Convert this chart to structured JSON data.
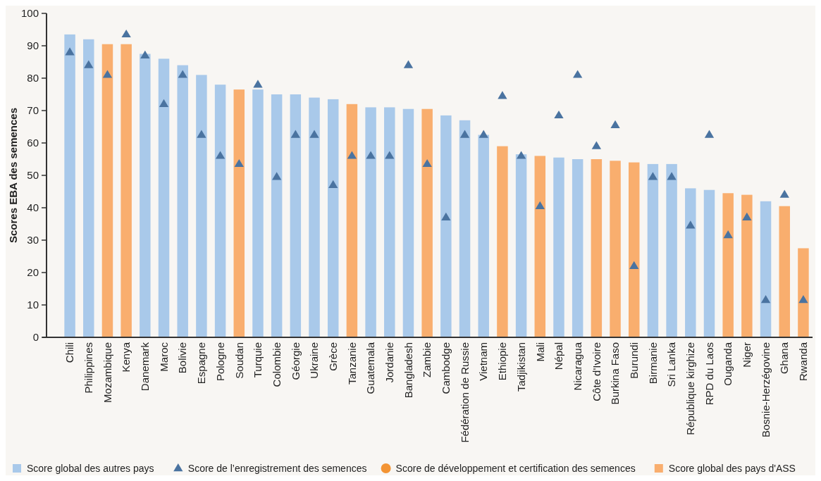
{
  "chart_data": {
    "type": "bar",
    "ylabel": "Scores EBA des semences",
    "categories": [
      "Chili",
      "Philippines",
      "Mozambique",
      "Kenya",
      "Danemark",
      "Maroc",
      "Bolivie",
      "Espagne",
      "Pologne",
      "Soudan",
      "Turquie",
      "Colombie",
      "Géorgie",
      "Ukraine",
      "Grèce",
      "Tanzanie",
      "Guatemala",
      "Jordanie",
      "Bangladesh",
      "Zambie",
      "Cambodge",
      "Fédération de Russie",
      "Vietnam",
      "Ethiopie",
      "Tadjikistan",
      "Mali",
      "Népal",
      "Nicaragua",
      "Côte d'Ivoire",
      "Burkina Faso",
      "Burundi",
      "Birmanie",
      "Sri Lanka",
      "République kirghize",
      "RPD du Laos",
      "Ouganda",
      "Niger",
      "Bosnie-Herzégovine",
      "Ghana",
      "Rwanda"
    ],
    "series": [
      {
        "name": "Score global des autres pays",
        "color": "#a9c9ea",
        "values": [
          93.5,
          92,
          null,
          null,
          87.5,
          86,
          84,
          81,
          78,
          null,
          76.5,
          75,
          75,
          74,
          73.5,
          null,
          71,
          71,
          70.5,
          null,
          68.5,
          67,
          62.5,
          null,
          56.5,
          null,
          55.5,
          55,
          null,
          null,
          null,
          53.5,
          53.5,
          46,
          45.5,
          null,
          null,
          42,
          null,
          null
        ]
      },
      {
        "name": "Score de l’enregistrement des semences",
        "type": "scatter",
        "marker": "triangle",
        "color": "#4a73a0",
        "values": [
          88,
          84,
          81,
          93.5,
          87,
          72,
          81,
          62.5,
          56,
          53.5,
          78,
          49.5,
          62.5,
          62.5,
          47,
          56,
          56,
          56,
          84,
          53.5,
          37,
          62.5,
          62.5,
          74.5,
          56,
          40.5,
          68.5,
          81,
          59,
          65.5,
          22,
          49.5,
          49.5,
          34.5,
          62.5,
          31.5,
          37,
          11.5,
          44,
          11.5
        ]
      },
      {
        "name": "Score de développement et certification des semences",
        "type": "scatter",
        "marker": "circle",
        "color": "#f39434",
        "values": [
          null,
          null,
          null,
          null,
          null,
          null,
          null,
          null,
          null,
          null,
          null,
          null,
          null,
          null,
          null,
          null,
          null,
          null,
          null,
          null,
          null,
          null,
          null,
          null,
          null,
          null,
          null,
          null,
          null,
          null,
          null,
          null,
          null,
          null,
          null,
          null,
          null,
          null,
          null,
          null
        ]
      },
      {
        "name": "Score global des pays d'ASS",
        "color": "#f9ae6e",
        "values": [
          null,
          null,
          90.5,
          90.5,
          null,
          null,
          null,
          null,
          null,
          76.5,
          null,
          null,
          null,
          null,
          null,
          72,
          null,
          null,
          null,
          70.5,
          null,
          null,
          null,
          59,
          null,
          56,
          null,
          null,
          55,
          54.5,
          54,
          null,
          null,
          null,
          null,
          44.5,
          44,
          null,
          40.5,
          27.5
        ]
      }
    ],
    "ylim": [
      0,
      100
    ],
    "yticks": [
      0,
      10,
      20,
      30,
      40,
      50,
      60,
      70,
      80,
      90,
      100
    ],
    "grid": false,
    "legend": "bottom"
  }
}
